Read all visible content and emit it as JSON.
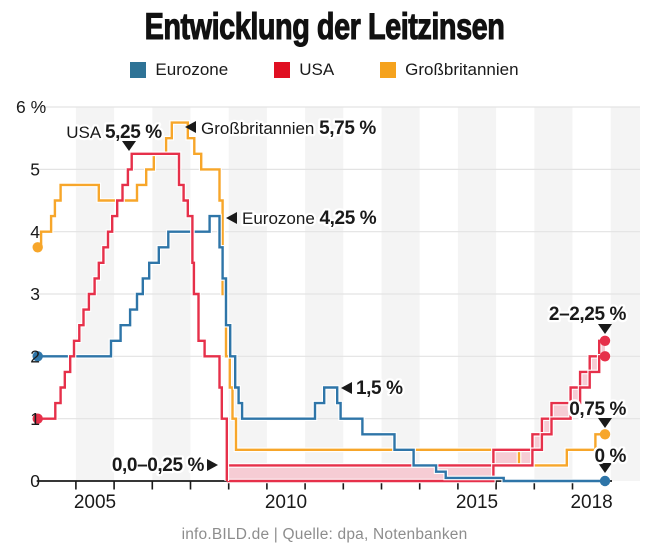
{
  "title": "Entwicklung der Leitzinsen",
  "legend": [
    {
      "id": "eurozone",
      "label": "Eurozone",
      "color": "#2e7396"
    },
    {
      "id": "usa",
      "label": "USA",
      "color": "#e00f22"
    },
    {
      "id": "grossbritannien",
      "label": "Großbritannien",
      "color": "#f5a21d"
    }
  ],
  "footer": "info.BILD.de | Quelle: dpa, Notenbanken",
  "chart_data": {
    "type": "line",
    "subtype": "step-lines-with-band",
    "x_domain": [
      2004,
      2018.85
    ],
    "y_domain": [
      0,
      6
    ],
    "grid": true,
    "striped_years": [
      2005,
      2007,
      2009,
      2011,
      2013,
      2015,
      2017,
      2019
    ],
    "stripe_color": "#f4f4f4",
    "gridline_color": "#e3e3e3",
    "axis_color": "#1a1a1a",
    "y_ticks": [
      {
        "v": 0,
        "label": "0",
        "align": "right"
      },
      {
        "v": 1,
        "label": "1",
        "align": "right"
      },
      {
        "v": 2,
        "label": "2",
        "align": "right"
      },
      {
        "v": 3,
        "label": "3",
        "align": "right"
      },
      {
        "v": 4,
        "label": "4",
        "align": "right"
      },
      {
        "v": 5,
        "label": "5",
        "align": "right"
      },
      {
        "v": 6,
        "label": "6 %",
        "align": "left"
      }
    ],
    "x_tick_years": [
      2005,
      2006,
      2007,
      2008,
      2009,
      2010,
      2011,
      2012,
      2013,
      2014,
      2015,
      2016,
      2017,
      2018
    ],
    "x_labels": [
      {
        "year_center": 2005.5,
        "text": "2005"
      },
      {
        "year_center": 2010.5,
        "text": "2010"
      },
      {
        "year_center": 2015.5,
        "text": "2015"
      },
      {
        "year_center": 2018.5,
        "text": "2018"
      }
    ],
    "series": [
      {
        "name": "Großbritannien",
        "color": "#f7a62a",
        "start_dot": true,
        "end_dot": true,
        "extend_to_end": true,
        "points": [
          [
            2004,
            3.75
          ],
          [
            2004.09,
            4
          ],
          [
            2004.35,
            4.25
          ],
          [
            2004.45,
            4.5
          ],
          [
            2004.6,
            4.75
          ],
          [
            2005.6,
            4.5
          ],
          [
            2006.6,
            4.75
          ],
          [
            2006.84,
            5
          ],
          [
            2007.04,
            5.25
          ],
          [
            2007.36,
            5.5
          ],
          [
            2007.51,
            5.75
          ],
          [
            2007.93,
            5.5
          ],
          [
            2008.1,
            5.25
          ],
          [
            2008.28,
            5
          ],
          [
            2008.76,
            4.5
          ],
          [
            2008.84,
            3
          ],
          [
            2008.93,
            2
          ],
          [
            2009.03,
            1.5
          ],
          [
            2009.1,
            1
          ],
          [
            2009.19,
            0.5
          ],
          [
            2016.6,
            0.25
          ],
          [
            2017.85,
            0.5
          ],
          [
            2018.6,
            0.75
          ]
        ]
      },
      {
        "name": "Eurozone",
        "color": "#2e75a8",
        "start_dot": true,
        "end_dot": true,
        "extend_to_end": true,
        "points": [
          [
            2004,
            2
          ],
          [
            2005.92,
            2.25
          ],
          [
            2006.17,
            2.5
          ],
          [
            2006.42,
            2.75
          ],
          [
            2006.6,
            3
          ],
          [
            2006.75,
            3.25
          ],
          [
            2006.92,
            3.5
          ],
          [
            2007.17,
            3.75
          ],
          [
            2007.42,
            4
          ],
          [
            2008.5,
            4.25
          ],
          [
            2008.76,
            3.75
          ],
          [
            2008.84,
            3.25
          ],
          [
            2008.93,
            2.5
          ],
          [
            2009.04,
            2
          ],
          [
            2009.17,
            1.5
          ],
          [
            2009.26,
            1.25
          ],
          [
            2009.35,
            1
          ],
          [
            2011.26,
            1.25
          ],
          [
            2011.5,
            1.5
          ],
          [
            2011.84,
            1.25
          ],
          [
            2011.93,
            1
          ],
          [
            2012.5,
            0.75
          ],
          [
            2013.34,
            0.5
          ],
          [
            2013.84,
            0.25
          ],
          [
            2014.43,
            0.15
          ],
          [
            2014.68,
            0.05
          ],
          [
            2016.2,
            0
          ]
        ]
      },
      {
        "name": "USA",
        "color": "#e6304a",
        "start_dot": true,
        "end_dot": false,
        "extend_to_end": false,
        "points": [
          [
            2004,
            1
          ],
          [
            2004.46,
            1.25
          ],
          [
            2004.6,
            1.5
          ],
          [
            2004.71,
            1.75
          ],
          [
            2004.85,
            2
          ],
          [
            2004.95,
            2.25
          ],
          [
            2005.09,
            2.5
          ],
          [
            2005.2,
            2.75
          ],
          [
            2005.34,
            3
          ],
          [
            2005.49,
            3.25
          ],
          [
            2005.6,
            3.5
          ],
          [
            2005.72,
            3.75
          ],
          [
            2005.84,
            4
          ],
          [
            2005.95,
            4.25
          ],
          [
            2006.08,
            4.5
          ],
          [
            2006.22,
            4.75
          ],
          [
            2006.36,
            5
          ],
          [
            2006.46,
            5.25
          ],
          [
            2007.7,
            4.75
          ],
          [
            2007.82,
            4.5
          ],
          [
            2007.93,
            4.25
          ],
          [
            2008.05,
            3.5
          ],
          [
            2008.09,
            3
          ],
          [
            2008.21,
            2.25
          ],
          [
            2008.37,
            2
          ],
          [
            2008.76,
            1.5
          ],
          [
            2008.82,
            1
          ],
          [
            2008.95,
            0
          ]
        ]
      }
    ],
    "band": {
      "name": "USA Zielband",
      "stroke": "#e6304a",
      "fill": "#f6ccd4",
      "steps": [
        [
          2008.95,
          0,
          0.25
        ],
        [
          2015.93,
          0.25,
          0.5
        ],
        [
          2016.95,
          0.5,
          0.75
        ],
        [
          2017.2,
          0.75,
          1
        ],
        [
          2017.45,
          1,
          1.25
        ],
        [
          2017.95,
          1.25,
          1.5
        ],
        [
          2018.2,
          1.5,
          1.75
        ],
        [
          2018.45,
          1.75,
          2
        ],
        [
          2018.7,
          2,
          2.25
        ]
      ],
      "end_dots": [
        2,
        2.25
      ]
    },
    "annotations": [
      {
        "id": "usa-peak",
        "pre": "USA ",
        "bold": "5,25 %",
        "anchor": "middle",
        "tx": 114,
        "ty": 138,
        "marker": "down",
        "mx": 129,
        "my": 146
      },
      {
        "id": "gb-peak",
        "pre": "Großbritannien ",
        "bold": "5,75 %",
        "anchor": "start",
        "tx": 201,
        "ty": 134,
        "marker": "left",
        "mx": 191,
        "my": 127
      },
      {
        "id": "ez-peak",
        "pre": "Eurozone ",
        "bold": "4,25 %",
        "anchor": "start",
        "tx": 242,
        "ty": 224,
        "marker": "left",
        "mx": 232,
        "my": 218
      },
      {
        "id": "ez-2011-peak",
        "pre": "",
        "bold": "1,5 %",
        "anchor": "start",
        "tx": 356,
        "ty": 394,
        "marker": "left",
        "mx": 347,
        "my": 388
      },
      {
        "id": "usa-zero-band",
        "pre": "",
        "bold": "0,0–0,25 %",
        "anchor": "end",
        "tx": 204,
        "ty": 471,
        "marker": "right",
        "mx": 212,
        "my": 465
      },
      {
        "id": "usa-end",
        "pre": "",
        "bold": "2–2,25 %",
        "anchor": "end",
        "tx": 626,
        "ty": 320,
        "marker": "down",
        "mx": 605,
        "my": 329
      },
      {
        "id": "gb-end",
        "pre": "",
        "bold": "0,75 %",
        "anchor": "end",
        "tx": 626,
        "ty": 415,
        "marker": "down",
        "mx": 605,
        "my": 423
      },
      {
        "id": "ez-end",
        "pre": "",
        "bold": "0 %",
        "anchor": "end",
        "tx": 626,
        "ty": 462,
        "marker": "down",
        "mx": 605,
        "my": 468
      }
    ]
  }
}
